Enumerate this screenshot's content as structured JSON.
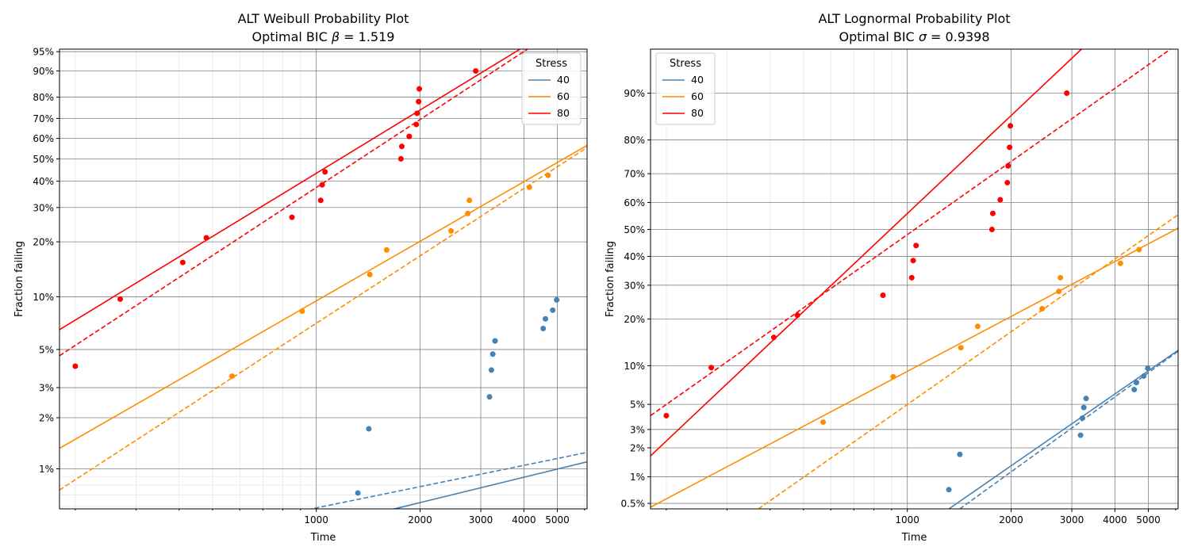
{
  "colors": {
    "40": "#4682b4",
    "60": "#ff8c00",
    "80": "#ff0000"
  },
  "chart_data": [
    {
      "type": "scatter",
      "title": "ALT Weibull Probability Plot",
      "subtitle_prefix": "Optimal BIC ",
      "subtitle_symbol": "β",
      "subtitle_value": " = 1.519",
      "xlabel": "Time",
      "ylabel": "Fraction failing",
      "xscale": "log",
      "yscale": "weibull",
      "xlim": [
        180,
        6100
      ],
      "ylim": [
        0.0058,
        0.955
      ],
      "x_ticks": [
        1000,
        2000,
        3000,
        4000,
        5000
      ],
      "x_tick_labels": [
        "1000",
        "2000",
        "3000",
        "4000",
        "5000"
      ],
      "y_ticks": [
        0.01,
        0.02,
        0.03,
        0.05,
        0.1,
        0.2,
        0.3,
        0.4,
        0.5,
        0.6,
        0.7,
        0.8,
        0.9,
        0.95
      ],
      "y_tick_labels": [
        "1%",
        "2%",
        "3%",
        "5%",
        "10%",
        "20%",
        "30%",
        "40%",
        "50%",
        "60%",
        "70%",
        "80%",
        "90%",
        "95%"
      ],
      "y_minor": [
        0.006,
        0.007,
        0.008,
        0.009
      ],
      "grid": true,
      "legend": {
        "title": "Stress",
        "position": "top-right",
        "entries": [
          "40",
          "60",
          "80"
        ]
      },
      "series": [
        {
          "name": "40",
          "color": "#4682b4",
          "points": [
            [
              1320,
              0.0072
            ],
            [
              1420,
              0.0172
            ],
            [
              3180,
              0.0265
            ],
            [
              3220,
              0.038
            ],
            [
              3250,
              0.047
            ],
            [
              3300,
              0.056
            ],
            [
              4550,
              0.066
            ],
            [
              4620,
              0.075
            ],
            [
              4850,
              0.084
            ],
            [
              4980,
              0.096
            ]
          ],
          "fit_solid": [
            [
              800,
              0.004
            ],
            [
              6100,
              0.011
            ]
          ],
          "fit_dashed": [
            [
              680,
              0.005
            ],
            [
              6100,
              0.0125
            ]
          ]
        },
        {
          "name": "60",
          "color": "#ff8c00",
          "points": [
            [
              570,
              0.035
            ],
            [
              910,
              0.083
            ],
            [
              1430,
              0.133
            ],
            [
              1600,
              0.181
            ],
            [
              2460,
              0.228
            ],
            [
              2750,
              0.28
            ],
            [
              2780,
              0.325
            ],
            [
              4150,
              0.375
            ],
            [
              4700,
              0.425
            ]
          ],
          "fit_solid": [
            [
              180,
              0.0132
            ],
            [
              6100,
              0.565
            ]
          ],
          "fit_dashed": [
            [
              180,
              0.0075
            ],
            [
              6100,
              0.555
            ]
          ]
        },
        {
          "name": "80",
          "color": "#ff0000",
          "points": [
            [
              200,
              0.04
            ],
            [
              270,
              0.097
            ],
            [
              410,
              0.155
            ],
            [
              480,
              0.21
            ],
            [
              850,
              0.268
            ],
            [
              1030,
              0.325
            ],
            [
              1040,
              0.385
            ],
            [
              1060,
              0.44
            ],
            [
              1760,
              0.5
            ],
            [
              1770,
              0.56
            ],
            [
              1860,
              0.61
            ],
            [
              1950,
              0.67
            ],
            [
              1960,
              0.725
            ],
            [
              1980,
              0.78
            ],
            [
              1990,
              0.835
            ],
            [
              2900,
              0.9
            ]
          ],
          "fit_solid": [
            [
              180,
              0.065
            ],
            [
              3900,
              0.955
            ]
          ],
          "fit_dashed": [
            [
              180,
              0.046
            ],
            [
              4100,
              0.955
            ]
          ]
        }
      ]
    },
    {
      "type": "scatter",
      "title": "ALT Lognormal Probability Plot",
      "subtitle_prefix": "Optimal BIC ",
      "subtitle_symbol": "σ",
      "subtitle_value": " = 0.9398",
      "xlabel": "Time",
      "ylabel": "Fraction failing",
      "xscale": "log",
      "yscale": "normal",
      "xlim": [
        180,
        6100
      ],
      "ylim": [
        0.0043,
        0.955
      ],
      "x_ticks": [
        1000,
        2000,
        3000,
        4000,
        5000
      ],
      "x_tick_labels": [
        "1000",
        "2000",
        "3000",
        "4000",
        "5000"
      ],
      "y_ticks": [
        0.005,
        0.01,
        0.02,
        0.03,
        0.05,
        0.1,
        0.2,
        0.3,
        0.4,
        0.5,
        0.6,
        0.7,
        0.8,
        0.9
      ],
      "y_tick_labels": [
        "0.5%",
        "1%",
        "2%",
        "3%",
        "5%",
        "10%",
        "20%",
        "30%",
        "40%",
        "50%",
        "60%",
        "70%",
        "80%",
        "90%"
      ],
      "y_minor": [],
      "grid": true,
      "legend": {
        "title": "Stress",
        "position": "top-left",
        "entries": [
          "40",
          "60",
          "80"
        ]
      },
      "series": [
        {
          "name": "40",
          "color": "#4682b4",
          "points": [
            [
              1320,
              0.0072
            ],
            [
              1420,
              0.0172
            ],
            [
              3180,
              0.0265
            ],
            [
              3220,
              0.038
            ],
            [
              3250,
              0.047
            ],
            [
              3300,
              0.056
            ],
            [
              4550,
              0.066
            ],
            [
              4620,
              0.075
            ],
            [
              4850,
              0.084
            ],
            [
              4980,
              0.096
            ]
          ],
          "fit_solid": [
            [
              1320,
              0.0043
            ],
            [
              6100,
              0.128
            ]
          ],
          "fit_dashed": [
            [
              1420,
              0.0043
            ],
            [
              6100,
              0.126
            ]
          ]
        },
        {
          "name": "60",
          "color": "#ff8c00",
          "points": [
            [
              570,
              0.035
            ],
            [
              910,
              0.083
            ],
            [
              1430,
              0.133
            ],
            [
              1600,
              0.181
            ],
            [
              2460,
              0.228
            ],
            [
              2750,
              0.28
            ],
            [
              2780,
              0.325
            ],
            [
              4150,
              0.375
            ],
            [
              4700,
              0.425
            ]
          ],
          "fit_solid": [
            [
              180,
              0.0045
            ],
            [
              6100,
              0.505
            ]
          ],
          "fit_dashed": [
            [
              370,
              0.0043
            ],
            [
              6100,
              0.555
            ]
          ]
        },
        {
          "name": "80",
          "color": "#ff0000",
          "points": [
            [
              200,
              0.04
            ],
            [
              270,
              0.097
            ],
            [
              410,
              0.155
            ],
            [
              480,
              0.21
            ],
            [
              850,
              0.268
            ],
            [
              1030,
              0.325
            ],
            [
              1040,
              0.385
            ],
            [
              1060,
              0.44
            ],
            [
              1760,
              0.5
            ],
            [
              1770,
              0.56
            ],
            [
              1860,
              0.61
            ],
            [
              1950,
              0.67
            ],
            [
              1960,
              0.725
            ],
            [
              1980,
              0.78
            ],
            [
              1990,
              0.835
            ],
            [
              2900,
              0.9
            ]
          ],
          "fit_solid": [
            [
              180,
              0.0166
            ],
            [
              3200,
              0.955
            ]
          ],
          "fit_dashed": [
            [
              180,
              0.04
            ],
            [
              5800,
              0.955
            ]
          ]
        }
      ]
    }
  ]
}
